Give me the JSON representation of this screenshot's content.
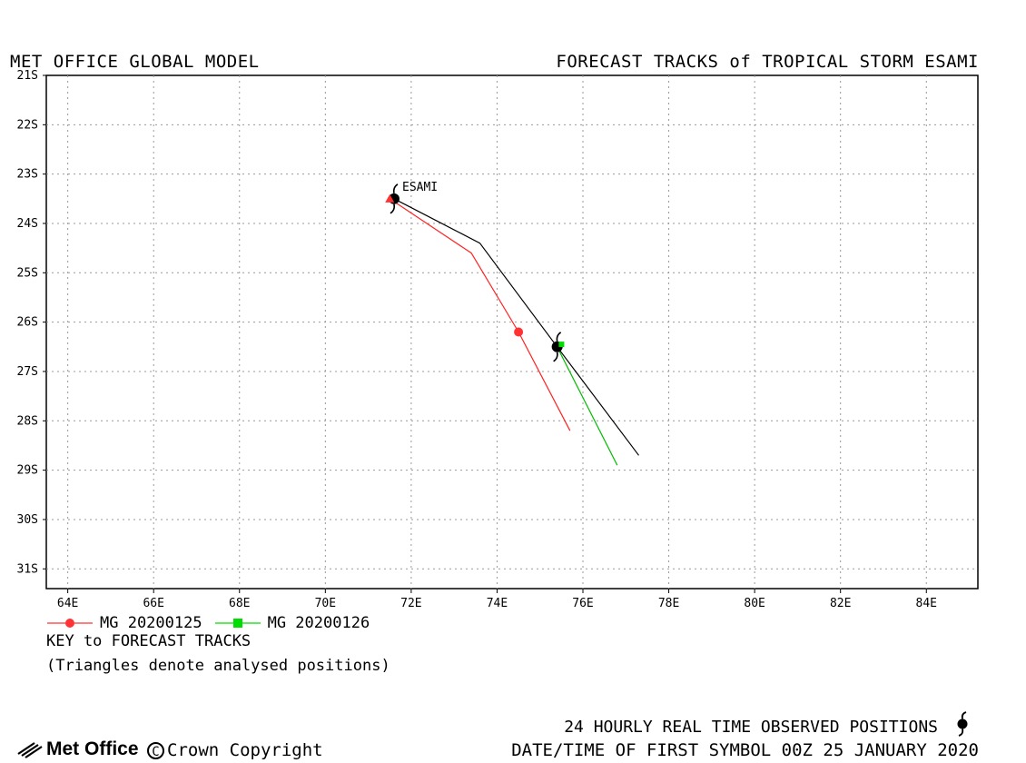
{
  "header": {
    "left_title": "MET OFFICE GLOBAL MODEL",
    "right_title": "FORECAST TRACKS of TROPICAL STORM ESAMI"
  },
  "map": {
    "lon_range": [
      63.5,
      85.2
    ],
    "lat_range": [
      -21,
      -31.4
    ],
    "lon_ticks": [
      "64E",
      "66E",
      "68E",
      "70E",
      "72E",
      "74E",
      "76E",
      "78E",
      "80E",
      "82E",
      "84E"
    ],
    "lon_tick_values": [
      64,
      66,
      68,
      70,
      72,
      74,
      76,
      78,
      80,
      82,
      84
    ],
    "lat_ticks": [
      "21S",
      "22S",
      "23S",
      "24S",
      "25S",
      "26S",
      "27S",
      "28S",
      "29S",
      "30S",
      "31S"
    ],
    "lat_tick_values": [
      -21,
      -22,
      -23,
      -24,
      -25,
      -26,
      -27,
      -28,
      -29,
      -30,
      -31
    ],
    "grid": "dotted",
    "storm_label": "ESAMI",
    "tracks": [
      {
        "type": "observed",
        "color": "#000000",
        "points": [
          [
            71.6,
            -23.5
          ],
          [
            73.6,
            -24.4
          ],
          [
            75.4,
            -26.5
          ],
          [
            77.3,
            -28.7
          ]
        ]
      },
      {
        "type": "forecast",
        "color": "#ff2222",
        "points": [
          [
            71.5,
            -23.5
          ],
          [
            73.4,
            -24.6
          ],
          [
            74.5,
            -26.2
          ],
          [
            75.7,
            -28.2
          ]
        ]
      },
      {
        "type": "forecast",
        "color": "#00bb00",
        "points": [
          [
            75.4,
            -26.5
          ],
          [
            76.8,
            -28.9
          ]
        ]
      }
    ],
    "markers": [
      {
        "kind": "cyclone",
        "lon": 71.6,
        "lat": -23.5
      },
      {
        "kind": "cyclone",
        "lon": 75.4,
        "lat": -26.5
      },
      {
        "kind": "circle",
        "color": "#ff3333",
        "lon": 74.5,
        "lat": -26.2
      },
      {
        "kind": "triangle",
        "color": "#ff3333",
        "lon": 71.5,
        "lat": -23.5
      },
      {
        "kind": "square",
        "color": "#00dd00",
        "lon": 75.5,
        "lat": -26.45
      }
    ]
  },
  "legend": {
    "items": [
      {
        "label": "MG 20200125",
        "color": "#ff3333",
        "symbol": "circle"
      },
      {
        "label": "MG 20200126",
        "color": "#00dd00",
        "symbol": "square"
      }
    ],
    "key_title": "KEY to FORECAST TRACKS",
    "key_note": "(Triangles denote analysed positions)"
  },
  "footer": {
    "observed_label": "24 HOURLY REAL TIME OBSERVED POSITIONS",
    "first_symbol": "DATE/TIME OF FIRST SYMBOL 00Z 25 JANUARY 2020",
    "logo_text": "Met Office",
    "copyright_symbol": "C",
    "copyright_text": "Crown Copyright"
  }
}
